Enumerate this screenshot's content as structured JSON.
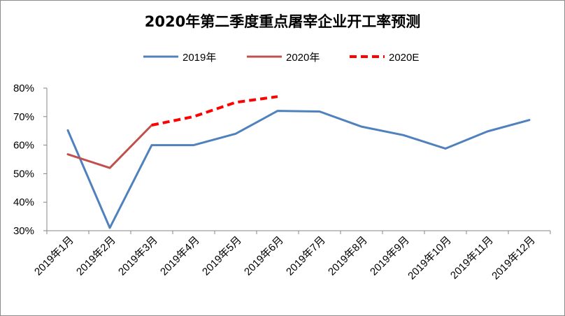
{
  "chart_data": {
    "type": "line",
    "title": "2020年第二季度重点屠宰企业开工率预测",
    "xlabel": "",
    "ylabel": "",
    "categories": [
      "2019年1月",
      "2019年2月",
      "2019年3月",
      "2019年4月",
      "2019年5月",
      "2019年6月",
      "2019年7月",
      "2019年8月",
      "2019年9月",
      "2019年10月",
      "2019年11月",
      "2019年12月"
    ],
    "y_tick_labels": [
      "30%",
      "40%",
      "50%",
      "60%",
      "70%",
      "80%"
    ],
    "ylim": [
      30,
      80
    ],
    "grid": false,
    "legend_position": "top-center",
    "series": [
      {
        "name": "2019年",
        "color": "#4f81bd",
        "dash": "solid",
        "values": [
          65.2,
          31.0,
          60.0,
          60.0,
          64.0,
          72.0,
          71.8,
          66.5,
          63.5,
          58.8,
          64.8,
          68.8
        ]
      },
      {
        "name": "2020年",
        "color": "#c0504d",
        "dash": "solid",
        "values": [
          56.8,
          52.0,
          67.0,
          null,
          null,
          null,
          null,
          null,
          null,
          null,
          null,
          null
        ]
      },
      {
        "name": "2020E",
        "color": "#ff0000",
        "dash": "dashed",
        "values": [
          null,
          null,
          67.0,
          70.0,
          75.0,
          77.0,
          null,
          null,
          null,
          null,
          null,
          null
        ]
      }
    ]
  }
}
